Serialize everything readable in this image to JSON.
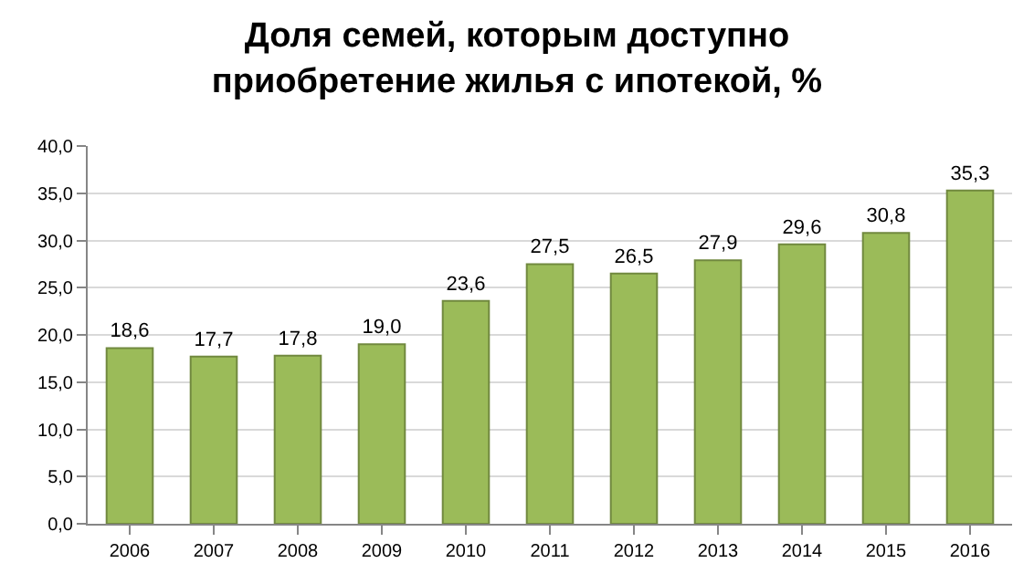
{
  "chart_data": {
    "type": "bar",
    "title": "Доля семей, которым доступно\nприобретение жилья с ипотекой, %",
    "categories": [
      "2006",
      "2007",
      "2008",
      "2009",
      "2010",
      "2011",
      "2012",
      "2013",
      "2014",
      "2015",
      "2016"
    ],
    "values": [
      18.6,
      17.7,
      17.8,
      19.0,
      23.6,
      27.5,
      26.5,
      27.9,
      29.6,
      30.8,
      35.3
    ],
    "value_labels": [
      "18,6",
      "17,7",
      "17,8",
      "19,0",
      "23,6",
      "27,5",
      "26,5",
      "27,9",
      "29,6",
      "30,8",
      "35,3"
    ],
    "color": "#9bbb59",
    "ylim": [
      0,
      40
    ],
    "yticks": [
      {
        "value": 0,
        "label": "0,0"
      },
      {
        "value": 5,
        "label": "5,0"
      },
      {
        "value": 10,
        "label": "10,0"
      },
      {
        "value": 15,
        "label": "15,0"
      },
      {
        "value": 20,
        "label": "20,0"
      },
      {
        "value": 25,
        "label": "25,0"
      },
      {
        "value": 30,
        "label": "30,0"
      },
      {
        "value": 35,
        "label": "35,0"
      },
      {
        "value": 40,
        "label": "40,0"
      }
    ],
    "grid": "y",
    "legend": false
  }
}
